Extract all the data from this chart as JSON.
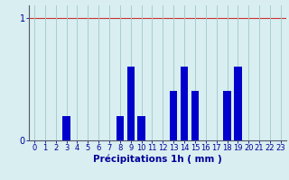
{
  "hours": [
    0,
    1,
    2,
    3,
    4,
    5,
    6,
    7,
    8,
    9,
    10,
    11,
    12,
    13,
    14,
    15,
    16,
    17,
    18,
    19,
    20,
    21,
    22,
    23
  ],
  "values": [
    0,
    0,
    0,
    0.2,
    0,
    0,
    0,
    0,
    0.2,
    0.6,
    0.2,
    0,
    0,
    0.4,
    0.6,
    0.4,
    0,
    0,
    0.4,
    0.6,
    0,
    0,
    0,
    0
  ],
  "bar_color": "#0000cc",
  "background_color": "#d8eef0",
  "grid_color": "#aacccc",
  "red_line_color": "#cc3333",
  "axis_color": "#555566",
  "text_color": "#000099",
  "xlabel": "Précipitations 1h ( mm )",
  "ylim": [
    0,
    1.1
  ],
  "yticks": [
    0,
    1
  ],
  "xlabel_fontsize": 7.5,
  "tick_fontsize": 6.0,
  "bar_width": 0.7
}
